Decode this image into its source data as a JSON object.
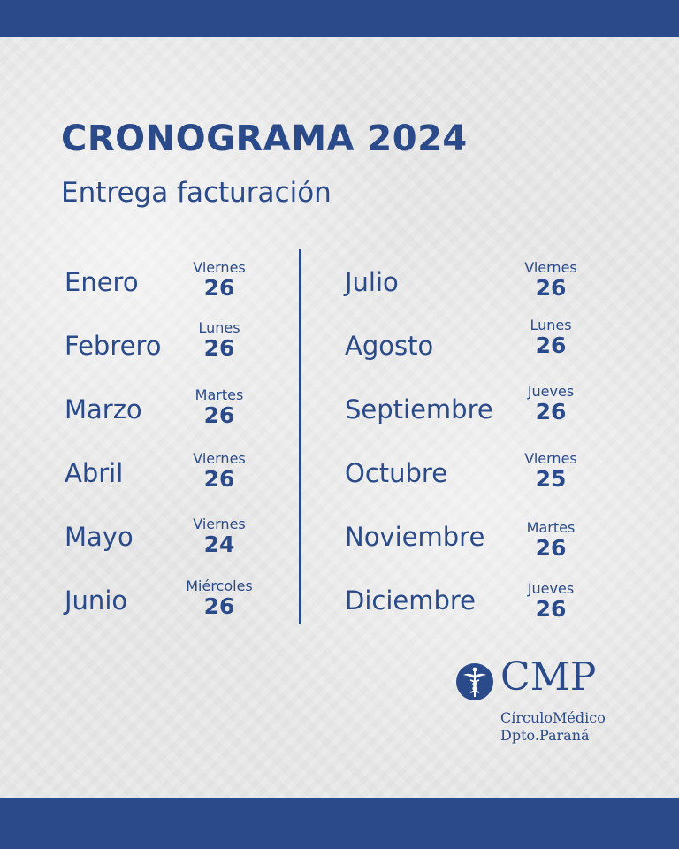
{
  "header": {
    "title": "CRONOGRAMA 2024",
    "subtitle": "Entrega facturación"
  },
  "schedule": {
    "left": [
      {
        "month": "Enero",
        "weekday": "Viernes",
        "day": "26"
      },
      {
        "month": "Febrero",
        "weekday": "Lunes",
        "day": "26"
      },
      {
        "month": "Marzo",
        "weekday": "Martes",
        "day": "26"
      },
      {
        "month": "Abril",
        "weekday": "Viernes",
        "day": "26"
      },
      {
        "month": "Mayo",
        "weekday": "Viernes",
        "day": "24"
      },
      {
        "month": "Junio",
        "weekday": "Miércoles",
        "day": "26"
      }
    ],
    "right": [
      {
        "month": "Julio",
        "weekday": "Viernes",
        "day": "26"
      },
      {
        "month": "Agosto",
        "weekday": "Lunes",
        "day": "26"
      },
      {
        "month": "Septiembre",
        "weekday": "Jueves",
        "day": "26"
      },
      {
        "month": "Octubre",
        "weekday": "Viernes",
        "day": "25"
      },
      {
        "month": "Noviembre",
        "weekday": "Martes",
        "day": "26"
      },
      {
        "month": "Diciembre",
        "weekday": "Jueves",
        "day": "26"
      }
    ]
  },
  "logo": {
    "icon": "caduceus-icon",
    "name": "CMP",
    "line1": "CírculoMédico",
    "line2": "Dpto.Paraná"
  },
  "colors": {
    "primary": "#2a4a8a",
    "background": "#e9e9e9"
  }
}
